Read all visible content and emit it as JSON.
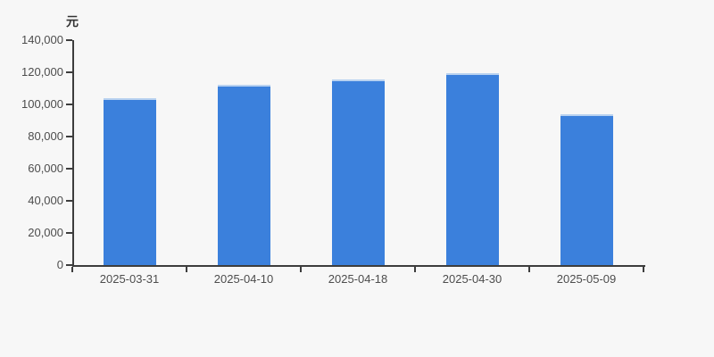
{
  "chart_data": {
    "type": "bar",
    "title": "",
    "unit_label": "元",
    "xlabel": "",
    "ylabel": "元",
    "categories": [
      "2025-03-31",
      "2025-04-10",
      "2025-04-18",
      "2025-04-30",
      "2025-05-09"
    ],
    "values": [
      103900,
      112200,
      115800,
      119400,
      93900
    ],
    "ylim": [
      0,
      140000
    ],
    "ytick_interval": 20000,
    "ytick_labels": [
      "0",
      "20,000",
      "40,000",
      "60,000",
      "80,000",
      "100,000",
      "120,000",
      "140,000"
    ],
    "grid": false,
    "legend_position": "none",
    "colors": {
      "bar": "#3b80dc",
      "bar_top_edge": "#b9d2f0",
      "axis": "#3d3d3d",
      "tick_label": "#4d4d4d",
      "background": "#f7f7f7"
    }
  }
}
